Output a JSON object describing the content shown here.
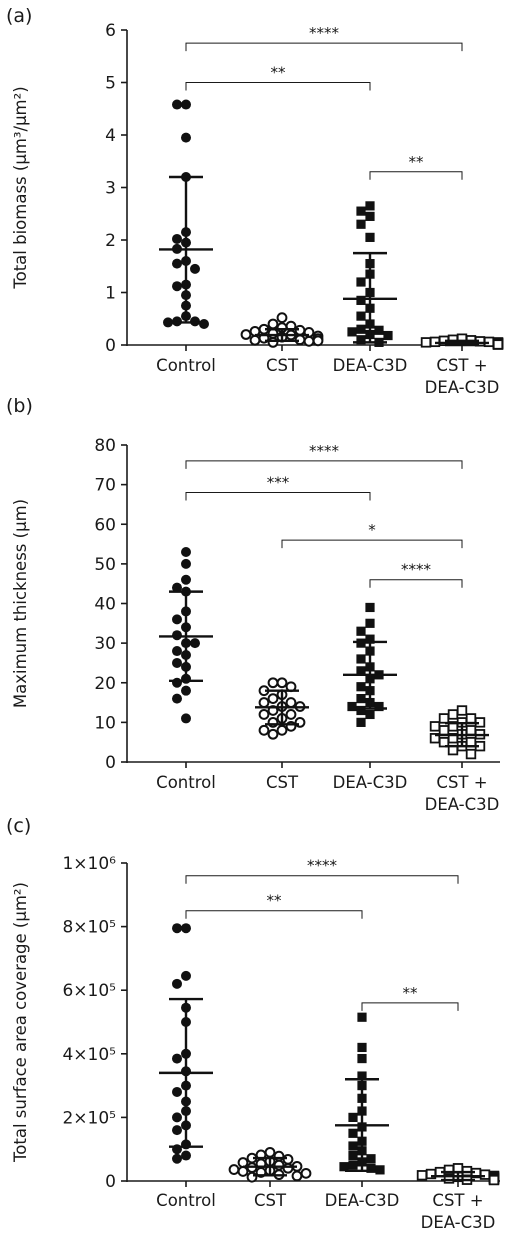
{
  "chart_data": [
    {
      "type": "scatter",
      "panel_label": "(a)",
      "ylabel": "Total biomass (μm³/μm²)",
      "ylim": [
        0,
        6
      ],
      "yticks": [
        0,
        1,
        2,
        3,
        4,
        5,
        6
      ],
      "yticklabels": [
        "0",
        "1",
        "2",
        "3",
        "4",
        "5",
        "6"
      ],
      "categories": [
        [
          "Control"
        ],
        [
          "CST"
        ],
        [
          "DEA-C3D"
        ],
        [
          "CST +",
          "DEA-C3D"
        ]
      ],
      "groups": [
        {
          "marker": "filled-circle",
          "mean": 1.82,
          "sd_low": 0.43,
          "sd_high": 3.2,
          "values": [
            4.58,
            4.58,
            3.95,
            3.2,
            2.15,
            2.02,
            1.95,
            1.83,
            1.6,
            1.55,
            1.45,
            1.15,
            1.12,
            0.95,
            0.75,
            0.55,
            0.45,
            0.45,
            0.43,
            0.4
          ]
        },
        {
          "marker": "open-circle",
          "mean": 0.19,
          "sd_low": 0.08,
          "sd_high": 0.3,
          "values": [
            0.52,
            0.4,
            0.36,
            0.33,
            0.3,
            0.28,
            0.26,
            0.24,
            0.22,
            0.2,
            0.19,
            0.17,
            0.15,
            0.13,
            0.12,
            0.1,
            0.09,
            0.08,
            0.07,
            0.05
          ]
        },
        {
          "marker": "filled-square",
          "mean": 0.88,
          "sd_low": 0.05,
          "sd_high": 1.75,
          "values": [
            2.65,
            2.55,
            2.45,
            2.3,
            2.05,
            1.55,
            1.35,
            1.2,
            1.0,
            0.85,
            0.7,
            0.55,
            0.4,
            0.3,
            0.28,
            0.25,
            0.2,
            0.18,
            0.1,
            0.05
          ]
        },
        {
          "marker": "open-square",
          "mean": 0.04,
          "sd_low": 0.0,
          "sd_high": 0.08,
          "values": [
            0.12,
            0.1,
            0.09,
            0.08,
            0.07,
            0.06,
            0.06,
            0.05,
            0.05,
            0.04,
            0.04,
            0.03,
            0.03,
            0.03,
            0.02,
            0.02,
            0.02,
            0.01,
            0.01,
            0.01
          ]
        }
      ],
      "significance": [
        {
          "from": 0,
          "to": 3,
          "y": 5.75,
          "label": "****"
        },
        {
          "from": 0,
          "to": 2,
          "y": 5.0,
          "label": "**"
        },
        {
          "from": 2,
          "to": 3,
          "y": 3.3,
          "label": "**"
        }
      ]
    },
    {
      "type": "scatter",
      "panel_label": "(b)",
      "ylabel": "Maximum thickness (μm)",
      "ylim": [
        0,
        80
      ],
      "yticks": [
        0,
        10,
        20,
        30,
        40,
        50,
        60,
        70,
        80
      ],
      "yticklabels": [
        "0",
        "10",
        "20",
        "30",
        "40",
        "50",
        "60",
        "70",
        "80"
      ],
      "categories": [
        [
          "Control"
        ],
        [
          "CST"
        ],
        [
          "DEA-C3D"
        ],
        [
          "CST +",
          "DEA-C3D"
        ]
      ],
      "groups": [
        {
          "marker": "filled-circle",
          "mean": 31.7,
          "sd_low": 20.5,
          "sd_high": 43.0,
          "values": [
            53,
            50,
            46,
            44,
            43,
            38,
            36,
            34,
            32,
            30,
            30,
            28,
            27,
            25,
            24,
            21,
            20,
            18,
            16,
            11
          ]
        },
        {
          "marker": "open-circle",
          "mean": 13.8,
          "sd_low": 9.5,
          "sd_high": 18.0,
          "values": [
            20,
            20,
            19,
            18,
            17,
            16,
            15,
            15,
            14,
            14,
            13,
            12,
            12,
            11,
            10,
            10,
            9,
            8,
            8,
            7
          ]
        },
        {
          "marker": "filled-square",
          "mean": 22.0,
          "sd_low": 13.5,
          "sd_high": 30.3,
          "values": [
            39,
            35,
            33,
            31,
            30,
            28,
            26,
            24,
            23,
            22,
            21,
            19,
            18,
            16,
            15,
            14,
            14,
            13,
            12,
            10
          ]
        },
        {
          "marker": "open-square",
          "mean": 6.8,
          "sd_low": 4.0,
          "sd_high": 9.8,
          "values": [
            13,
            12,
            11,
            11,
            10,
            10,
            9,
            9,
            8,
            8,
            7,
            7,
            6,
            6,
            5,
            5,
            4,
            4,
            3,
            2
          ]
        }
      ],
      "significance": [
        {
          "from": 0,
          "to": 3,
          "y": 76,
          "label": "****"
        },
        {
          "from": 0,
          "to": 2,
          "y": 68,
          "label": "***"
        },
        {
          "from": 1,
          "to": 3,
          "y": 56,
          "label": "*"
        },
        {
          "from": 2,
          "to": 3,
          "y": 46,
          "label": "****"
        }
      ]
    },
    {
      "type": "scatter",
      "panel_label": "(c)",
      "ylabel": "Total surface area coverage (μm²)",
      "ylim": [
        0,
        1000000
      ],
      "yticks": [
        0,
        200000,
        400000,
        600000,
        800000,
        1000000
      ],
      "yticklabels": [
        "0",
        "2×10⁵",
        "4×10⁵",
        "6×10⁵",
        "8×10⁵",
        "1×10⁶"
      ],
      "categories": [
        [
          "Control"
        ],
        [
          "CST"
        ],
        [
          "DEA-C3D"
        ],
        [
          "CST +",
          "DEA-C3D"
        ]
      ],
      "groups": [
        {
          "marker": "filled-circle",
          "mean": 340000,
          "sd_low": 108000,
          "sd_high": 572000,
          "values": [
            795000,
            795000,
            645000,
            620000,
            545000,
            500000,
            400000,
            385000,
            345000,
            300000,
            280000,
            250000,
            220000,
            200000,
            175000,
            160000,
            115000,
            100000,
            80000,
            70000
          ]
        },
        {
          "marker": "open-circle",
          "mean": 45000,
          "sd_low": 18000,
          "sd_high": 72000,
          "values": [
            90000,
            82000,
            78000,
            72000,
            68000,
            62000,
            58000,
            54000,
            50000,
            46000,
            42000,
            40000,
            36000,
            33000,
            30000,
            27000,
            24000,
            20000,
            16000,
            12000
          ]
        },
        {
          "marker": "filled-square",
          "mean": 175000,
          "sd_low": 32000,
          "sd_high": 320000,
          "values": [
            515000,
            420000,
            385000,
            330000,
            300000,
            260000,
            220000,
            200000,
            170000,
            150000,
            125000,
            110000,
            95000,
            80000,
            70000,
            60000,
            50000,
            45000,
            40000,
            35000
          ]
        },
        {
          "marker": "open-square",
          "mean": 15000,
          "sd_low": 3000,
          "sd_high": 28000,
          "values": [
            40000,
            35000,
            31000,
            28000,
            25000,
            22000,
            20000,
            18000,
            16000,
            15000,
            13000,
            12000,
            10000,
            9000,
            8000,
            7000,
            6000,
            5000,
            4000,
            3000
          ]
        }
      ],
      "significance": [
        {
          "from": 0,
          "to": 3,
          "y": 960000,
          "label": "****"
        },
        {
          "from": 0,
          "to": 2,
          "y": 850000,
          "label": "**"
        },
        {
          "from": 2,
          "to": 3,
          "y": 560000,
          "label": "**"
        }
      ]
    }
  ]
}
